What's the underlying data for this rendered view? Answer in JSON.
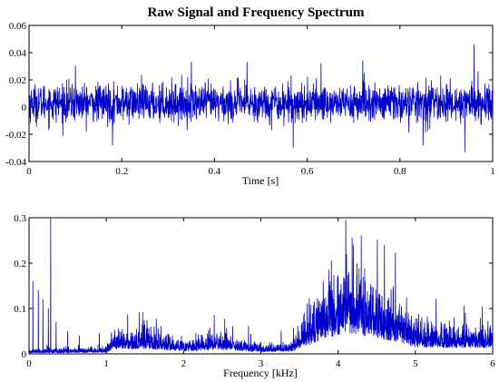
{
  "figure": {
    "title": "Raw Signal and Frequency Spectrum"
  },
  "chart_data": [
    {
      "type": "line",
      "title": "Raw Signal and Frequency Spectrum",
      "xlabel": "Time [s]",
      "ylabel": "",
      "xlim": [
        0,
        1
      ],
      "ylim": [
        -0.04,
        0.06
      ],
      "xticks": [
        "0",
        "0.2",
        "0.4",
        "0.6",
        "0.8",
        "1"
      ],
      "yticks": [
        "-0.04",
        "-0.02",
        "0",
        "0.02",
        "0.04",
        "0.06"
      ],
      "grid": false,
      "series": [
        {
          "color": "#0000cc",
          "x_range": [
            0,
            1
          ],
          "baseline": 0.003,
          "noise_amplitude": 0.018,
          "points": 2000,
          "peaks": [
            {
              "x": 0.1,
              "y": 0.03
            },
            {
              "x": 0.18,
              "y": -0.028
            },
            {
              "x": 0.35,
              "y": 0.033
            },
            {
              "x": 0.47,
              "y": 0.033
            },
            {
              "x": 0.57,
              "y": -0.03
            },
            {
              "x": 0.63,
              "y": 0.032
            },
            {
              "x": 0.72,
              "y": 0.034
            },
            {
              "x": 0.85,
              "y": -0.028
            },
            {
              "x": 0.94,
              "y": -0.033
            },
            {
              "x": 0.96,
              "y": 0.046
            }
          ]
        }
      ]
    },
    {
      "type": "line",
      "title": "",
      "xlabel": "Frequency [kHz]",
      "ylabel": "",
      "xlim": [
        0,
        6
      ],
      "ylim": [
        0,
        0.3
      ],
      "xticks": [
        "0",
        "1",
        "2",
        "3",
        "4",
        "5",
        "6"
      ],
      "yticks": [
        "0",
        "0.1",
        "0.2",
        "0.3"
      ],
      "grid": false,
      "series": [
        {
          "color": "#0000cc",
          "x_range": [
            0,
            6
          ],
          "points": 3000,
          "envelope": [
            {
              "x": 0.0,
              "y": 0.004
            },
            {
              "x": 1.0,
              "y": 0.006
            },
            {
              "x": 1.1,
              "y": 0.02
            },
            {
              "x": 1.5,
              "y": 0.022
            },
            {
              "x": 2.0,
              "y": 0.012
            },
            {
              "x": 2.5,
              "y": 0.018
            },
            {
              "x": 3.0,
              "y": 0.008
            },
            {
              "x": 3.4,
              "y": 0.01
            },
            {
              "x": 3.7,
              "y": 0.05
            },
            {
              "x": 4.1,
              "y": 0.09
            },
            {
              "x": 4.5,
              "y": 0.07
            },
            {
              "x": 5.0,
              "y": 0.03
            },
            {
              "x": 5.5,
              "y": 0.025
            },
            {
              "x": 6.0,
              "y": 0.028
            }
          ],
          "spikes": [
            {
              "x": 0.05,
              "y": 0.16
            },
            {
              "x": 0.12,
              "y": 0.14
            },
            {
              "x": 0.18,
              "y": 0.12
            },
            {
              "x": 0.25,
              "y": 0.1
            },
            {
              "x": 0.28,
              "y": 0.3
            },
            {
              "x": 0.35,
              "y": 0.07
            },
            {
              "x": 0.5,
              "y": 0.05
            },
            {
              "x": 0.65,
              "y": 0.04
            },
            {
              "x": 4.1,
              "y": 0.295
            },
            {
              "x": 4.3,
              "y": 0.26
            },
            {
              "x": 4.6,
              "y": 0.24
            }
          ]
        }
      ]
    }
  ]
}
